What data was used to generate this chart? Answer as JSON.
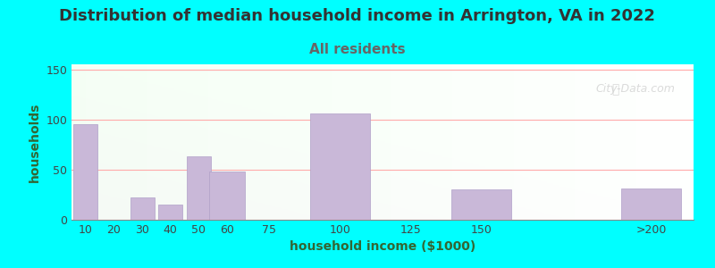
{
  "title": "Distribution of median household income in Arrington, VA in 2022",
  "subtitle": "All residents",
  "xlabel": "household income ($1000)",
  "ylabel": "households",
  "background_color": "#00FFFF",
  "plot_bg_colors": [
    "#f0f5e8",
    "#e8e8f5"
  ],
  "bar_color": "#c9b8d8",
  "bar_edge_color": "#b0a0c8",
  "title_color": "#333333",
  "subtitle_color": "#666666",
  "axis_label_color": "#336633",
  "tick_label_color": "#444444",
  "categories": [
    "10",
    "20",
    "30",
    "40",
    "50",
    "60",
    "75",
    "100",
    "125",
    "150",
    ">200"
  ],
  "values": [
    95,
    0,
    22,
    15,
    63,
    48,
    0,
    106,
    0,
    30,
    31
  ],
  "positions": [
    10,
    20,
    30,
    40,
    50,
    60,
    75,
    100,
    125,
    150,
    210
  ],
  "widths": [
    10,
    10,
    10,
    10,
    10,
    15,
    25,
    25,
    25,
    25,
    25
  ],
  "ylim": [
    0,
    155
  ],
  "yticks": [
    0,
    50,
    100,
    150
  ],
  "watermark": "City-Data.com",
  "title_fontsize": 13,
  "subtitle_fontsize": 11,
  "label_fontsize": 10
}
